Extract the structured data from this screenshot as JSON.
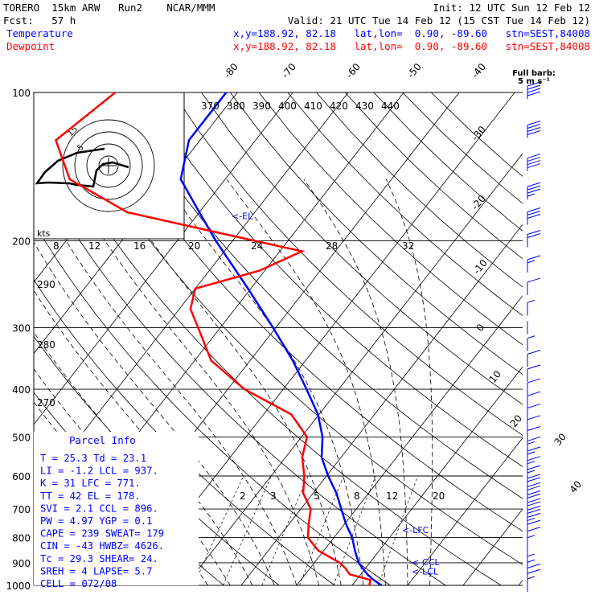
{
  "header": {
    "model": "TORERO  15km ARW   Run2    NCAR/MMM",
    "init": "Init: 12 UTC Sun 12 Feb 12",
    "fcst": "Fcst:   57 h",
    "valid": "Valid: 21 UTC Tue 14 Feb 12 (15 CST Tue 14 Feb 12)",
    "temp_label": "Temperature",
    "temp_loc": "x,y=188.92, 82.18   lat,lon=  0.90, -89.60   stn=SEST,84008",
    "dew_label": "Dewpoint",
    "dew_loc": "x,y=188.92, 82.18   lat,lon=  0.90, -89.60   stn=SEST,84008"
  },
  "colors": {
    "temperature": "#0000ff",
    "dewpoint": "#ff0000",
    "lines": "#000000",
    "hodo_trace": "#000000"
  },
  "barb_legend": {
    "line1": "Full barb:",
    "line2": "5 m s⁻¹"
  },
  "hodograph": {
    "units": "kts",
    "ring_labels": [
      "5",
      "15"
    ]
  },
  "chart_data": {
    "type": "line",
    "diagram": "skew-T log-p",
    "y_axis": {
      "name": "pressure",
      "units": "hPa",
      "scale": "log",
      "range": [
        1000,
        100
      ],
      "labels": [
        "100",
        "200",
        "300",
        "400",
        "500",
        "600",
        "700",
        "800",
        "900",
        "1000"
      ],
      "values": [
        100,
        200,
        300,
        400,
        500,
        600,
        700,
        800,
        900,
        1000
      ]
    },
    "isotherm_labels": [
      "-80",
      "-70",
      "-60",
      "-50",
      "-40",
      "-30",
      "-20",
      "-10",
      "0",
      "10",
      "20",
      "30",
      "40"
    ],
    "isotherm_values": [
      -80,
      -70,
      -60,
      -50,
      -40,
      -30,
      -20,
      -10,
      0,
      10,
      20,
      30,
      40
    ],
    "theta_labels": [
      "370",
      "380",
      "390",
      "400",
      "410",
      "420",
      "430",
      "440"
    ],
    "theta_values": [
      370,
      380,
      390,
      400,
      410,
      420,
      430,
      440
    ],
    "theta_lower_labels": [
      "290",
      "280",
      "270"
    ],
    "theta_lower_values": [
      290,
      280,
      270
    ],
    "thetae_labels": [
      "8",
      "12",
      "16",
      "20",
      "24",
      "28",
      "32"
    ],
    "thetae_values": [
      8,
      12,
      16,
      20,
      24,
      28,
      32
    ],
    "mixing_ratio_labels": [
      "2",
      "3",
      "5",
      "8",
      "12",
      "20"
    ],
    "mixing_ratio_values": [
      2,
      3,
      5,
      8,
      12,
      20
    ],
    "series": [
      {
        "name": "Temperature",
        "pressure": [
          1000,
          975,
          950,
          925,
          900,
          850,
          800,
          750,
          700,
          650,
          600,
          550,
          500,
          450,
          400,
          350,
          300,
          250,
          200,
          175,
          150,
          125,
          100
        ],
        "temperature": [
          25.3,
          23.1,
          21.2,
          19.6,
          18.0,
          15.6,
          13.3,
          10.2,
          7.3,
          4.2,
          0.3,
          -3.5,
          -6.2,
          -10.2,
          -15.8,
          -22.3,
          -30.5,
          -40.5,
          -53.0,
          -60.0,
          -68.0,
          -72.0,
          -72.0
        ]
      },
      {
        "name": "Dewpoint",
        "pressure": [
          1000,
          975,
          950,
          925,
          900,
          850,
          800,
          750,
          700,
          650,
          600,
          550,
          500,
          450,
          400,
          350,
          300,
          275,
          250,
          230,
          210,
          200,
          175,
          150,
          125,
          100
        ],
        "dewpoint": [
          23.1,
          22.5,
          18.0,
          16.5,
          14.6,
          9.0,
          5.3,
          3.5,
          1.8,
          -1.8,
          -4.0,
          -7.0,
          -9.0,
          -15.0,
          -27.0,
          -37.0,
          -44.0,
          -48.0,
          -50.0,
          -41.0,
          -36.0,
          -46.0,
          -73.0,
          -88.0,
          -96.0,
          -92.0
        ]
      }
    ],
    "level_markers": [
      {
        "label": "<-EL",
        "pressure": 178
      },
      {
        "label": "<-LFC",
        "pressure": 771
      },
      {
        "label": "<-CCL",
        "pressure": 896
      },
      {
        "label": "<-LCL",
        "pressure": 937
      }
    ],
    "wind_profile": {
      "pressure": [
        1000,
        975,
        950,
        925,
        900,
        875,
        850,
        825,
        800,
        775,
        750,
        725,
        700,
        675,
        650,
        625,
        600,
        575,
        550,
        525,
        500,
        475,
        450,
        425,
        400,
        375,
        350,
        325,
        300,
        275,
        250,
        225,
        200,
        180,
        160,
        140,
        120,
        100
      ],
      "speed_ms": [
        4,
        5,
        5,
        4,
        3,
        2,
        2,
        3,
        5,
        7,
        9,
        11,
        12,
        12,
        11,
        10,
        9,
        8,
        8,
        8,
        7,
        6,
        6,
        6,
        7,
        7,
        6,
        4,
        1,
        3,
        5,
        8,
        12,
        15,
        18,
        20,
        20,
        20
      ],
      "direction_deg": [
        150,
        145,
        140,
        130,
        120,
        100,
        80,
        60,
        60,
        70,
        80,
        90,
        90,
        90,
        90,
        90,
        90,
        90,
        90,
        90,
        90,
        90,
        90,
        90,
        90,
        90,
        90,
        90,
        260,
        270,
        270,
        270,
        270,
        270,
        270,
        270,
        270,
        270
      ]
    }
  },
  "parcel_info": {
    "title": "Parcel Info",
    "rows": [
      "T  =   25.3  Td =  23.1",
      "LI =   -1.2  LCL =  937.",
      "K  =     31  LFC =  771.",
      "TT =     42  EL  =  178.",
      "SVI =   2.1  CCL =  896.",
      "PW =   4.97  YGP =   0.1",
      "CAPE =  239  SWEAT=  179",
      "CIN =   -43  HWBZ= 4626.",
      "Tc =   29.3  SHEAR=  24.",
      "SREH =    4  LAPSE=  5.7",
      "CELL = 072/08"
    ]
  }
}
